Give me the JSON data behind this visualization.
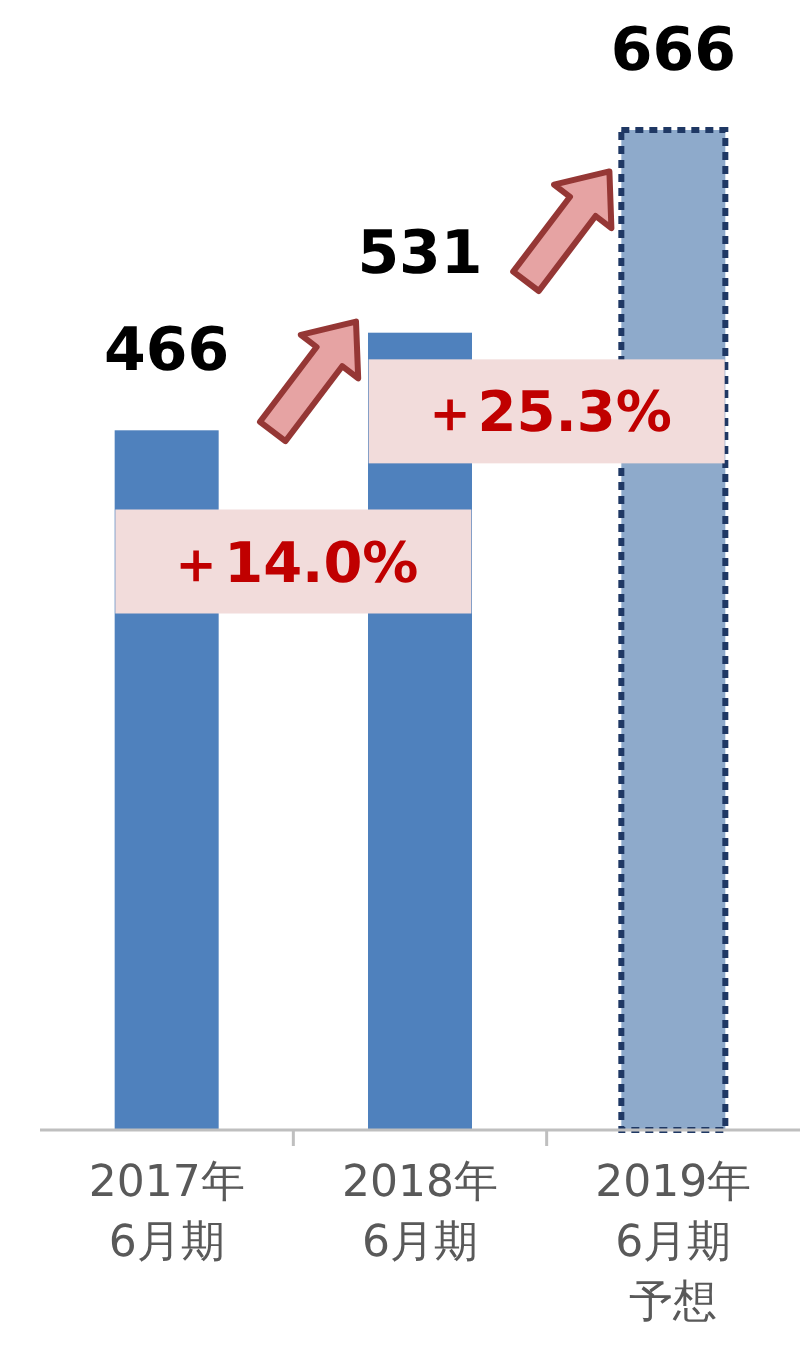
{
  "chart_data": {
    "type": "bar",
    "categories": [
      "2017年6月期",
      "2018年6月期",
      "2019年6月期予想"
    ],
    "values": [
      466,
      531,
      666
    ],
    "colors": [
      "#4f81bd",
      "#4f81bd",
      "#8eaacb"
    ],
    "data_labels": true,
    "annotations": [
      "＋14.0%",
      "＋25.3%"
    ]
  }
}
